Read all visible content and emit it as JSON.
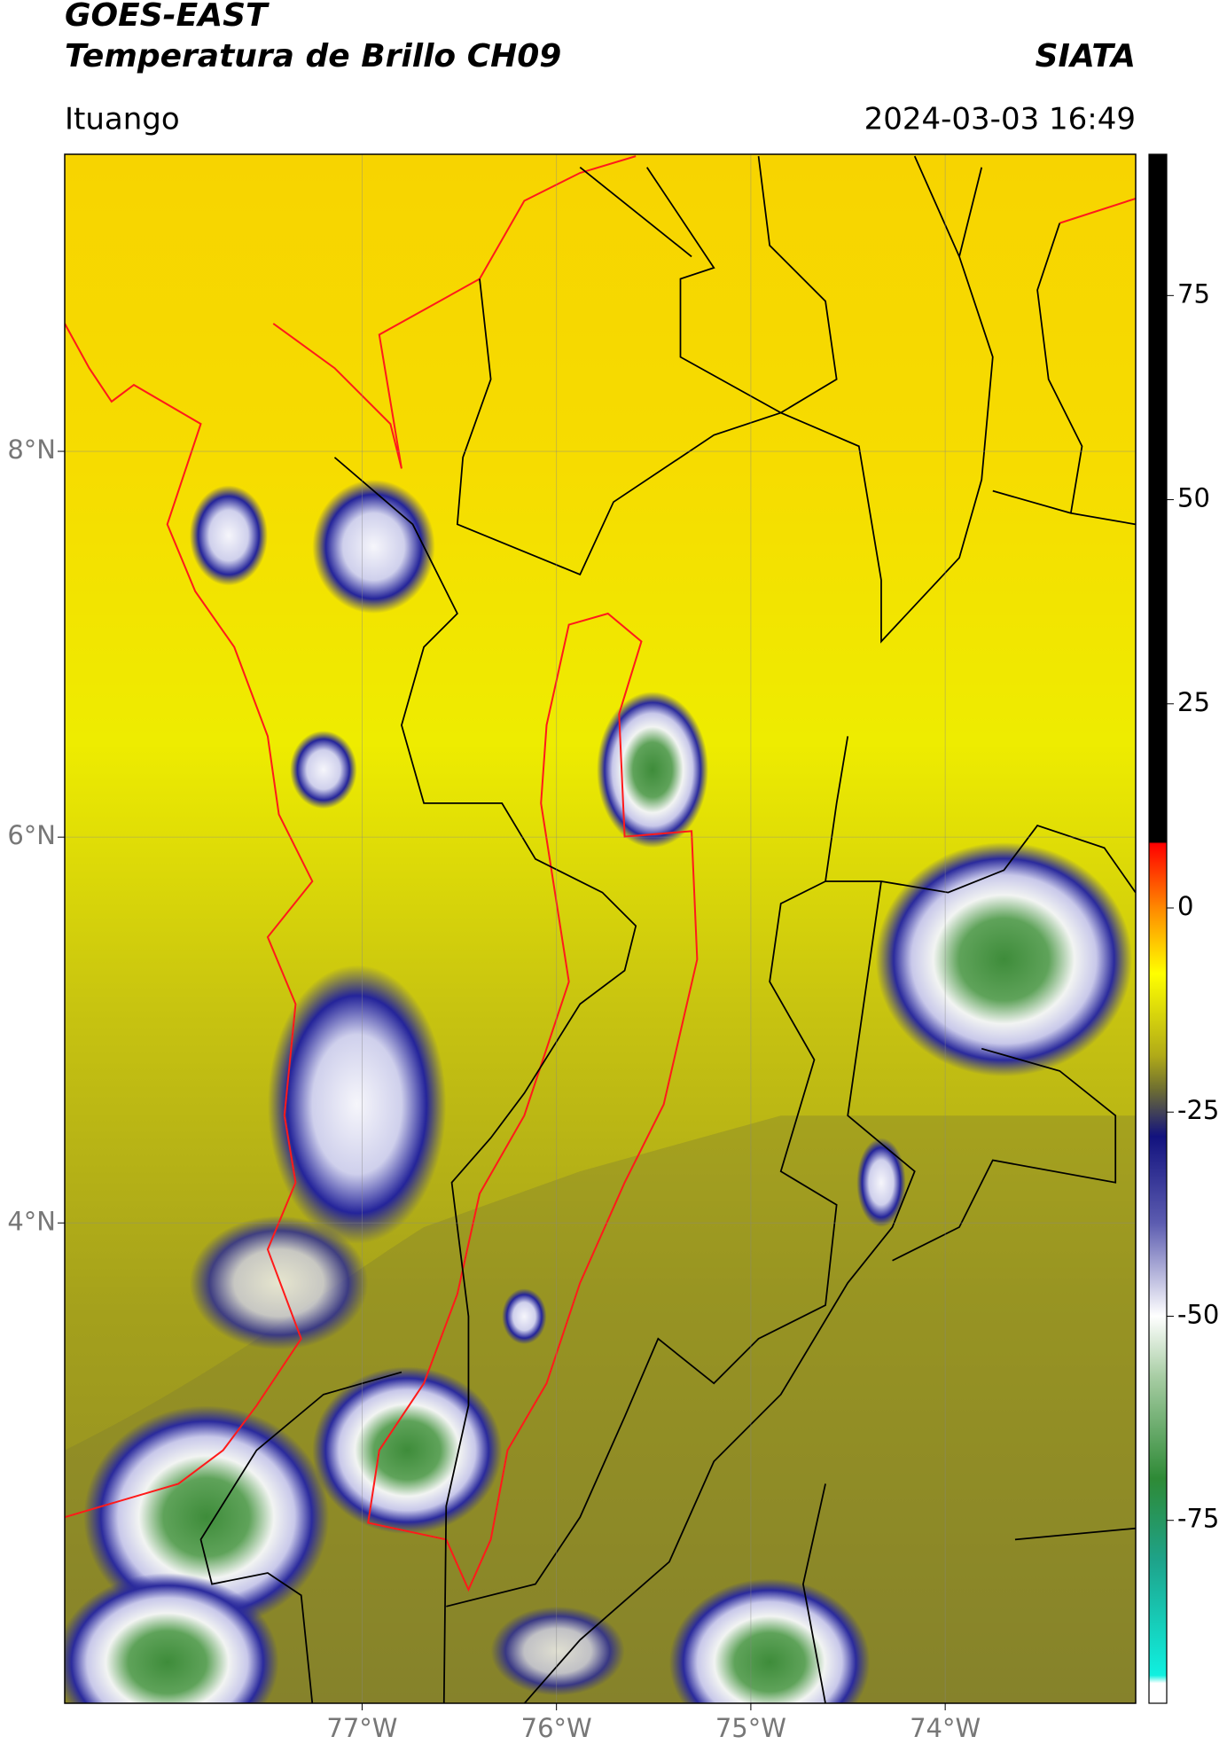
{
  "header": {
    "title": "GOES-EAST",
    "subtitle": "Temperatura de Brillo CH09",
    "source": "SIATA",
    "location": "Ituango",
    "timestamp": "2024-03-03 16:49"
  },
  "map": {
    "lon_range": [
      -78.53,
      -73.02
    ],
    "lat_range": [
      1.51,
      9.54
    ],
    "lat_ticks": [
      {
        "value": 8,
        "label": "8°N"
      },
      {
        "value": 6,
        "label": "6°N"
      },
      {
        "value": 4,
        "label": "4°N"
      }
    ],
    "lon_ticks": [
      {
        "value": -77,
        "label": "77°W"
      },
      {
        "value": -76,
        "label": "76°W"
      },
      {
        "value": -75,
        "label": "75°W"
      },
      {
        "value": -74,
        "label": "74°W"
      }
    ],
    "grid": true
  },
  "colorbar": {
    "range": [
      -97.4,
      92.3
    ],
    "ticks": [
      75,
      50,
      25,
      0,
      -25,
      -50,
      -75
    ]
  }
}
